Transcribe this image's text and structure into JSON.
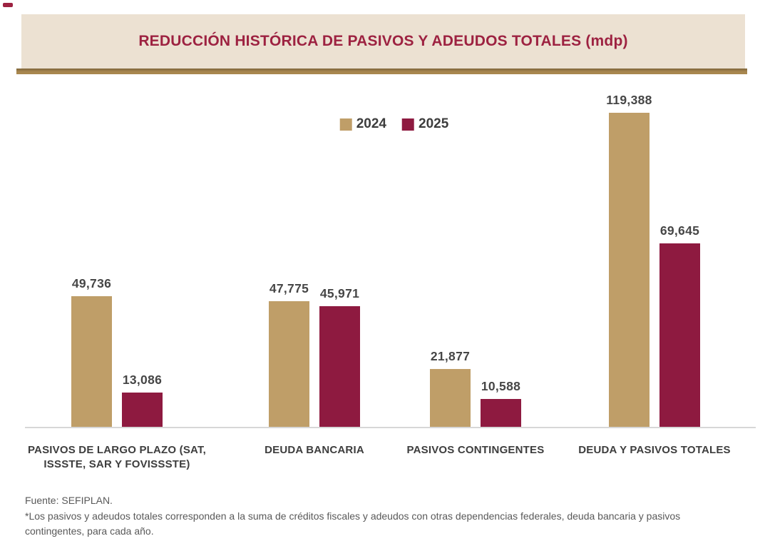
{
  "header": {
    "title": "REDUCCIÓN HISTÓRICA DE PASIVOS Y ADEUDOS TOTALES (mdp)",
    "bg_color": "#ece1d2",
    "title_color": "#9d2241",
    "underline_color": "#a8874f",
    "underline_dark_edge": "#7e6539"
  },
  "corner_mark_color": "#9d2241",
  "legend": {
    "position": "top-center",
    "items": [
      {
        "label": "2024",
        "color": "#bf9e68"
      },
      {
        "label": "2025",
        "color": "#8e1a40"
      }
    ]
  },
  "chart_data": {
    "type": "bar",
    "title": "REDUCCIÓN HISTÓRICA DE PASIVOS Y ADEUDOS TOTALES (mdp)",
    "unit": "mdp",
    "categories": [
      "PASIVOS DE LARGO PLAZO (SAT, ISSSTE, SAR Y FOVISSSTE)",
      "DEUDA BANCARIA",
      "PASIVOS CONTINGENTES",
      "DEUDA Y PASIVOS TOTALES"
    ],
    "category_lines": [
      [
        "PASIVOS DE LARGO PLAZO (SAT,",
        "ISSSTE, SAR Y FOVISSSTE)"
      ],
      [
        "DEUDA BANCARIA"
      ],
      [
        "PASIVOS CONTINGENTES"
      ],
      [
        "DEUDA Y PASIVOS TOTALES"
      ]
    ],
    "series": [
      {
        "name": "2024",
        "color": "#bf9e68",
        "values": [
          49736,
          47775,
          21877,
          119388
        ],
        "value_labels": [
          "49,736",
          "47,775",
          "21,877",
          "119,388"
        ]
      },
      {
        "name": "2025",
        "color": "#8e1a40",
        "values": [
          13086,
          45971,
          10588,
          69645
        ],
        "value_labels": [
          "13,086",
          "45,971",
          "10,588",
          "69,645"
        ]
      }
    ],
    "ylim": [
      0,
      125000
    ],
    "grid": false,
    "y_axis_visible": false,
    "baseline_color": "#d7d7d7",
    "value_label_color": "#464646"
  },
  "footer": {
    "source": "Fuente: SEFIPLAN.",
    "note": "*Los pasivos y adeudos totales corresponden a la suma de créditos fiscales y adeudos con otras dependencias federales, deuda bancaria y pasivos contingentes, para cada año."
  }
}
